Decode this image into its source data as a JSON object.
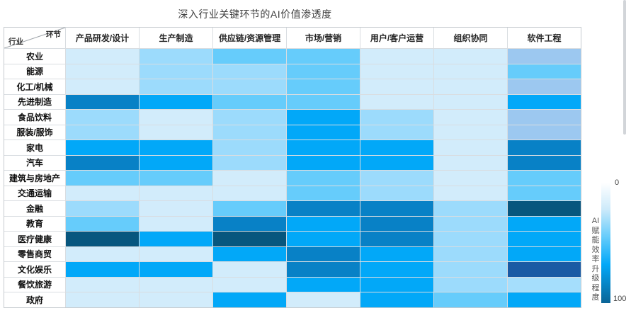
{
  "title": "深入行业关键环节的AI价值渗透度",
  "corner": {
    "top_right": "环节",
    "bottom_left": "行业"
  },
  "legend": {
    "min_label": "0",
    "max_label": "100",
    "label": "AI赋能效率升级程度",
    "label_lines": [
      "AI",
      "赋",
      "能",
      "效",
      "率",
      "升",
      "级",
      "程",
      "度"
    ],
    "gradient": [
      "#ffffff",
      "#cdeafa",
      "#66ccfb",
      "#02a8f8",
      "#0a6496"
    ]
  },
  "chart_data": {
    "type": "heatmap",
    "title": "深入行业关键环节的AI价值渗透度",
    "columns": [
      "产品研发/设计",
      "生产制造",
      "供应链/资源管理",
      "市场/营销",
      "用户/客户运营",
      "组织协同",
      "软件工程"
    ],
    "rows": [
      "农业",
      "能源",
      "化工/机械",
      "先进制造",
      "食品饮料",
      "服装/服饰",
      "家电",
      "汽车",
      "建筑与房地产",
      "交通运输",
      "金融",
      "教育",
      "医疗健康",
      "零售商贸",
      "文化娱乐",
      "餐饮旅游",
      "政府"
    ],
    "values": [
      [
        15,
        30,
        45,
        45,
        15,
        15,
        40
      ],
      [
        15,
        30,
        30,
        45,
        15,
        15,
        45
      ],
      [
        15,
        30,
        30,
        45,
        15,
        15,
        40
      ],
      [
        75,
        60,
        45,
        45,
        15,
        15,
        60
      ],
      [
        30,
        15,
        30,
        60,
        30,
        15,
        40
      ],
      [
        30,
        15,
        30,
        60,
        30,
        15,
        40
      ],
      [
        60,
        60,
        30,
        60,
        60,
        15,
        75
      ],
      [
        75,
        60,
        30,
        60,
        60,
        15,
        75
      ],
      [
        45,
        45,
        15,
        45,
        30,
        15,
        45
      ],
      [
        15,
        15,
        15,
        45,
        30,
        15,
        45
      ],
      [
        30,
        15,
        45,
        75,
        75,
        30,
        95
      ],
      [
        45,
        15,
        75,
        60,
        75,
        30,
        60
      ],
      [
        95,
        60,
        95,
        60,
        75,
        30,
        60
      ],
      [
        15,
        15,
        60,
        75,
        60,
        30,
        60
      ],
      [
        60,
        60,
        15,
        75,
        60,
        30,
        85
      ],
      [
        15,
        15,
        15,
        60,
        60,
        30,
        35
      ],
      [
        15,
        15,
        60,
        15,
        60,
        45,
        60
      ]
    ],
    "colors": [
      [
        "#d2ecfb",
        "#9cdbfc",
        "#66ccfb",
        "#66ccfb",
        "#d2ecfb",
        "#d2ecfb",
        "#9cc8f0"
      ],
      [
        "#d2ecfb",
        "#9cdbfc",
        "#9cdbfc",
        "#66ccfb",
        "#d2ecfb",
        "#d2ecfb",
        "#66ccfb"
      ],
      [
        "#d2ecfb",
        "#9cdbfc",
        "#9cdbfc",
        "#66ccfb",
        "#d2ecfb",
        "#d2ecfb",
        "#9cc8f0"
      ],
      [
        "#0881c6",
        "#02a8f8",
        "#66ccfb",
        "#66ccfb",
        "#d2ecfb",
        "#d2ecfb",
        "#02a8f8"
      ],
      [
        "#9cdbfc",
        "#d2ecfb",
        "#9cdbfc",
        "#02a8f8",
        "#9cdbfc",
        "#d2ecfb",
        "#9cc8f0"
      ],
      [
        "#9cdbfc",
        "#d2ecfb",
        "#9cdbfc",
        "#02a8f8",
        "#9cdbfc",
        "#d2ecfb",
        "#9cc8f0"
      ],
      [
        "#02a8f8",
        "#02a8f8",
        "#9cdbfc",
        "#02a8f8",
        "#02a8f8",
        "#d2ecfb",
        "#0881c6"
      ],
      [
        "#0881c6",
        "#02a8f8",
        "#9cdbfc",
        "#02a8f8",
        "#02a8f8",
        "#d2ecfb",
        "#0881c6"
      ],
      [
        "#66ccfb",
        "#66ccfb",
        "#d2ecfb",
        "#66ccfb",
        "#9cdbfc",
        "#d2ecfb",
        "#66ccfb"
      ],
      [
        "#d2ecfb",
        "#d2ecfb",
        "#d2ecfb",
        "#66ccfb",
        "#9cdbfc",
        "#d2ecfb",
        "#66ccfb"
      ],
      [
        "#9cdbfc",
        "#d2ecfb",
        "#66ccfb",
        "#0881c6",
        "#0881c6",
        "#9cdbfc",
        "#07567e"
      ],
      [
        "#66ccfb",
        "#d2ecfb",
        "#0881c6",
        "#02a8f8",
        "#0881c6",
        "#9cdbfc",
        "#02a8f8"
      ],
      [
        "#07567e",
        "#02a8f8",
        "#07567e",
        "#02a8f8",
        "#0881c6",
        "#9cdbfc",
        "#02a8f8"
      ],
      [
        "#d2ecfb",
        "#d2ecfb",
        "#02a8f8",
        "#0881c6",
        "#02a8f8",
        "#9cdbfc",
        "#02a8f8"
      ],
      [
        "#02a8f8",
        "#02a8f8",
        "#d2ecfb",
        "#0881c6",
        "#02a8f8",
        "#9cdbfc",
        "#1a5aa4"
      ],
      [
        "#d2ecfb",
        "#d2ecfb",
        "#d2ecfb",
        "#02a8f8",
        "#02a8f8",
        "#9cdbfc",
        "#a5defc"
      ],
      [
        "#d2ecfb",
        "#d2ecfb",
        "#02a8f8",
        "#d2ecfb",
        "#02a8f8",
        "#66ccfb",
        "#02a8f8"
      ]
    ],
    "value_range": [
      0,
      100
    ],
    "legend_label": "AI赋能效率升级程度",
    "legend_position": "right",
    "grid": true
  }
}
